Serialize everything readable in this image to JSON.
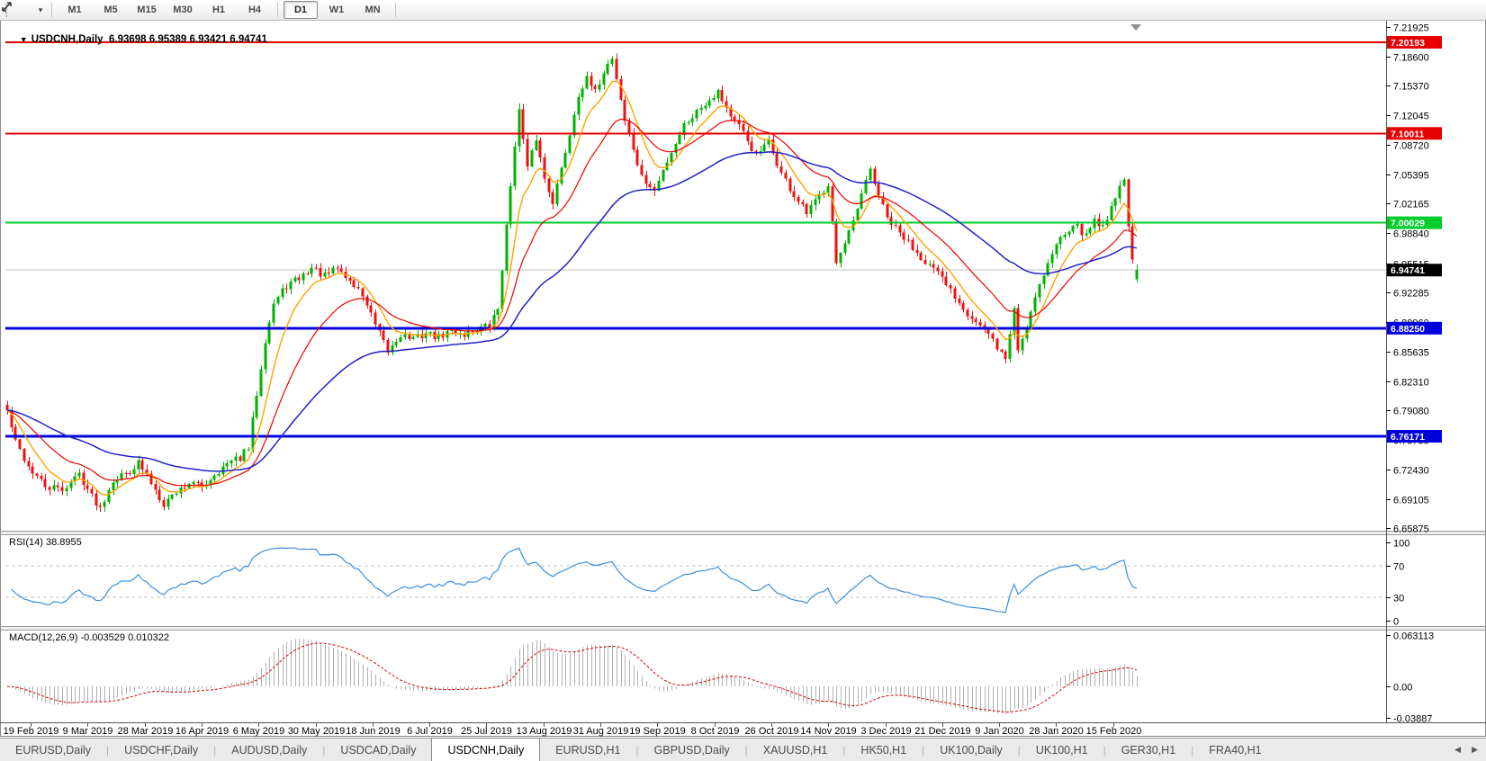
{
  "icons": {
    "title_caret": "▼",
    "toolbar_caret": "▾",
    "tab_scroll_left": "◀",
    "tab_scroll_right": "▶"
  },
  "toolbar": {
    "timeframes": [
      "M1",
      "M5",
      "M15",
      "M30",
      "H1",
      "H4",
      "D1",
      "W1",
      "MN"
    ],
    "active_timeframe": "D1"
  },
  "title": {
    "symbol": "USDCNH,Daily",
    "ohlc": "6.93698 6.95389 6.93421 6.94741"
  },
  "indicators": {
    "rsi_label": "RSI(14) 38.8955",
    "macd_label": "MACD(12,26,9) -0.003529 0.010322"
  },
  "chart_data": {
    "type": "candlestick",
    "symbol": "USDCNH",
    "timeframe": "Daily",
    "bars": 268,
    "price_range_visible": [
      6.637,
      7.227
    ],
    "price_axis_ticks": [
      "7.21925",
      "7.18600",
      "7.15370",
      "7.12045",
      "7.08720",
      "7.05395",
      "7.02165",
      "6.98840",
      "6.95515",
      "6.92285",
      "6.88960",
      "6.85635",
      "6.82310",
      "6.79080",
      "6.75755",
      "6.72430",
      "6.69105",
      "6.65875"
    ],
    "hlines": [
      {
        "price": 7.20193,
        "label": "7.20193",
        "color": "#e60000",
        "width": 2
      },
      {
        "price": 7.10011,
        "label": "7.10011",
        "color": "#e60000",
        "width": 2
      },
      {
        "price": 7.00029,
        "label": "7.00029",
        "color": "#00cc2a",
        "width": 2
      },
      {
        "price": 6.8825,
        "label": "6.88250",
        "color": "#0000dd",
        "width": 3
      },
      {
        "price": 6.76171,
        "label": "6.76171",
        "color": "#0000dd",
        "width": 3
      }
    ],
    "current_price": {
      "price": 6.94741,
      "label": "6.94741",
      "line_color": "#c2c2c2",
      "tag_bg": "#000000"
    },
    "last_bar": {
      "o": 6.93698,
      "h": 6.95389,
      "l": 6.93421,
      "c": 6.94741
    },
    "candle_up_color": "#00b200",
    "candle_down_color": "#ee1111",
    "moving_averages": [
      {
        "period": 8,
        "color": "#ffa200",
        "width": 1.4
      },
      {
        "period": 21,
        "color": "#ee0000",
        "width": 1.2
      },
      {
        "period": 55,
        "color": "#2121cc",
        "width": 1.5
      }
    ],
    "date_labels": [
      "19 Feb 2019",
      "9 Mar 2019",
      "28 Mar 2019",
      "16 Apr 2019",
      "6 May 2019",
      "30 May 2019",
      "18 Jun 2019",
      "6 Jul 2019",
      "25 Jul 2019",
      "13 Aug 2019",
      "31 Aug 2019",
      "19 Sep 2019",
      "8 Oct 2019",
      "26 Oct 2019",
      "14 Nov 2019",
      "3 Dec 2019",
      "21 Dec 2019",
      "9 Jan 2020",
      "28 Jan 2020",
      "15 Feb 2020"
    ],
    "anchors": [
      [
        0,
        6.79
      ],
      [
        2,
        6.755
      ],
      [
        5,
        6.728
      ],
      [
        9,
        6.705
      ],
      [
        13,
        6.702
      ],
      [
        17,
        6.72
      ],
      [
        20,
        6.695
      ],
      [
        22,
        6.682
      ],
      [
        25,
        6.714
      ],
      [
        28,
        6.72
      ],
      [
        31,
        6.732
      ],
      [
        34,
        6.71
      ],
      [
        37,
        6.687
      ],
      [
        40,
        6.7
      ],
      [
        43,
        6.71
      ],
      [
        46,
        6.705
      ],
      [
        49,
        6.72
      ],
      [
        52,
        6.73
      ],
      [
        55,
        6.738
      ],
      [
        57,
        6.748
      ],
      [
        59,
        6.81
      ],
      [
        61,
        6.87
      ],
      [
        63,
        6.91
      ],
      [
        66,
        6.93
      ],
      [
        69,
        6.938
      ],
      [
        72,
        6.95
      ],
      [
        75,
        6.94
      ],
      [
        78,
        6.95
      ],
      [
        81,
        6.935
      ],
      [
        84,
        6.92
      ],
      [
        87,
        6.885
      ],
      [
        90,
        6.856
      ],
      [
        93,
        6.876
      ],
      [
        96,
        6.87
      ],
      [
        99,
        6.877
      ],
      [
        102,
        6.872
      ],
      [
        105,
        6.88
      ],
      [
        108,
        6.876
      ],
      [
        111,
        6.882
      ],
      [
        114,
        6.885
      ],
      [
        116,
        6.905
      ],
      [
        118,
        6.995
      ],
      [
        120,
        7.09
      ],
      [
        121,
        7.125
      ],
      [
        123,
        7.06
      ],
      [
        125,
        7.095
      ],
      [
        127,
        7.05
      ],
      [
        129,
        7.025
      ],
      [
        131,
        7.06
      ],
      [
        133,
        7.1
      ],
      [
        135,
        7.145
      ],
      [
        137,
        7.16
      ],
      [
        139,
        7.145
      ],
      [
        141,
        7.17
      ],
      [
        143,
        7.185
      ],
      [
        146,
        7.115
      ],
      [
        150,
        7.05
      ],
      [
        153,
        7.035
      ],
      [
        156,
        7.07
      ],
      [
        160,
        7.11
      ],
      [
        164,
        7.13
      ],
      [
        168,
        7.148
      ],
      [
        171,
        7.12
      ],
      [
        174,
        7.1
      ],
      [
        177,
        7.075
      ],
      [
        180,
        7.09
      ],
      [
        183,
        7.055
      ],
      [
        186,
        7.03
      ],
      [
        189,
        7.01
      ],
      [
        192,
        7.03
      ],
      [
        194,
        7.045
      ],
      [
        195,
        7.005
      ],
      [
        196,
        6.955
      ],
      [
        198,
        6.975
      ],
      [
        200,
        7.0
      ],
      [
        202,
        7.03
      ],
      [
        204,
        7.06
      ],
      [
        206,
        7.03
      ],
      [
        208,
        7.005
      ],
      [
        211,
        6.988
      ],
      [
        215,
        6.968
      ],
      [
        219,
        6.948
      ],
      [
        223,
        6.925
      ],
      [
        227,
        6.9
      ],
      [
        230,
        6.885
      ],
      [
        233,
        6.868
      ],
      [
        236,
        6.848
      ],
      [
        238,
        6.905
      ],
      [
        239,
        6.858
      ],
      [
        241,
        6.885
      ],
      [
        243,
        6.92
      ],
      [
        246,
        6.955
      ],
      [
        249,
        6.985
      ],
      [
        252,
        7.0
      ],
      [
        255,
        6.985
      ],
      [
        257,
        7.005
      ],
      [
        259,
        6.995
      ],
      [
        261,
        7.02
      ],
      [
        263,
        7.04
      ],
      [
        264,
        7.048
      ],
      [
        265,
        7.0
      ],
      [
        266,
        6.955
      ],
      [
        267,
        6.94741
      ]
    ],
    "rsi": {
      "period": 14,
      "color": "#3a8fd9",
      "levels": [
        100,
        70,
        30,
        0
      ],
      "level_labels": [
        "100",
        "70",
        "30",
        "0"
      ]
    },
    "macd": {
      "fast": 12,
      "slow": 26,
      "signal": 9,
      "hist_color": "#b0b0b0",
      "signal_color": "#dd0000",
      "axis_labels": [
        "0.063113",
        "0.00",
        "-0.03887"
      ],
      "axis_values": [
        0.063113,
        0,
        -0.03887
      ]
    }
  },
  "tabs": {
    "items": [
      {
        "label": "EURUSD,Daily",
        "active": false
      },
      {
        "label": "USDCHF,Daily",
        "active": false
      },
      {
        "label": "AUDUSD,Daily",
        "active": false
      },
      {
        "label": "USDCAD,Daily",
        "active": false
      },
      {
        "label": "USDCNH,Daily",
        "active": true
      },
      {
        "label": "EURUSD,H1",
        "active": false
      },
      {
        "label": "GBPUSD,Daily",
        "active": false
      },
      {
        "label": "XAUUSD,H1",
        "active": false
      },
      {
        "label": "HK50,H1",
        "active": false
      },
      {
        "label": "UK100,Daily",
        "active": false
      },
      {
        "label": "UK100,H1",
        "active": false
      },
      {
        "label": "GER30,H1",
        "active": false
      },
      {
        "label": "FRA40,H1",
        "active": false
      }
    ]
  }
}
